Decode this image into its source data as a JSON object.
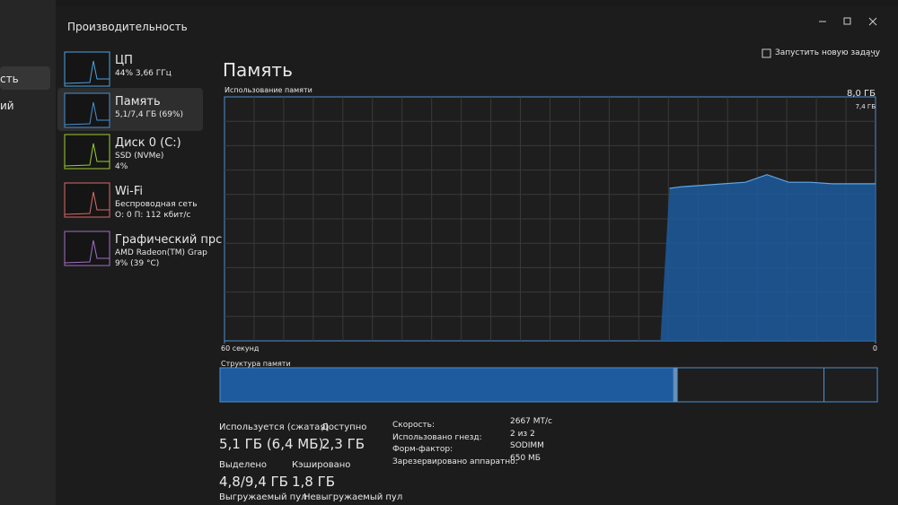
{
  "outer_menu": [
    "сть",
    "ий"
  ],
  "header": {
    "title": "Производительность",
    "new_task": "Запустить новую задачу",
    "more": "..."
  },
  "sidebar": [
    {
      "name": "ЦП",
      "lines": [
        "44% 3,66 ГГц"
      ]
    },
    {
      "name": "Память",
      "lines": [
        "5,1/7,4 ГБ (69%)"
      ]
    },
    {
      "name": "Диск 0 (C:)",
      "lines": [
        "SSD (NVMe)",
        "4%"
      ]
    },
    {
      "name": "Wi-Fi",
      "lines": [
        "Беспроводная сеть",
        "О: 0 П: 112 кбит/с"
      ]
    },
    {
      "name": "Графический прс",
      "lines": [
        "AMD Radeon(TM) Grap",
        "9% (39 °C)"
      ]
    }
  ],
  "panel": {
    "title": "Память",
    "usage_label": "Использование памяти",
    "structure_label": "Структура памяти"
  },
  "chart_data": {
    "type": "area",
    "color": "#1d5a9e",
    "ylim": [
      0,
      8
    ],
    "yticks": [
      {
        "value": 8,
        "label": "8,0 ГБ"
      }
    ],
    "capacity_label": "7,4 ГБ",
    "xlim": [
      60,
      0
    ],
    "xticks": [
      {
        "value": 60,
        "label": "60 секунд"
      },
      0
    ],
    "x": [
      19,
      18,
      16,
      14,
      12,
      10,
      8,
      6,
      4,
      2,
      0
    ],
    "values": [
      5.0,
      5.05,
      5.1,
      5.15,
      5.2,
      5.45,
      5.2,
      5.2,
      5.15,
      5.15,
      5.15
    ]
  },
  "composition": {
    "values": [
      5.1,
      0.04,
      1.65,
      0.6
    ]
  },
  "stats": [
    {
      "label": "Используется (сжатая)",
      "value": "5,1 ГБ (6,4 МБ)"
    },
    {
      "label": "Доступно",
      "value": "2,3 ГБ"
    },
    {
      "label": "Выделено",
      "value": "4,8/9,4 ГБ"
    },
    {
      "label": "Кэшировано",
      "value": "1,8 ГБ"
    },
    {
      "label": "Выгружаемый пул"
    },
    {
      "label": "Невыгружаемый пул"
    }
  ],
  "details": [
    {
      "label": "Скорость:",
      "value": "2667 МТ/с"
    },
    {
      "label": "Использовано гнезд:",
      "value": "2 из 2"
    },
    {
      "label": "Форм-фактор:",
      "value": "SODIMM"
    },
    {
      "label": "Зарезервировано аппаратно:",
      "value": "650 МБ"
    }
  ]
}
